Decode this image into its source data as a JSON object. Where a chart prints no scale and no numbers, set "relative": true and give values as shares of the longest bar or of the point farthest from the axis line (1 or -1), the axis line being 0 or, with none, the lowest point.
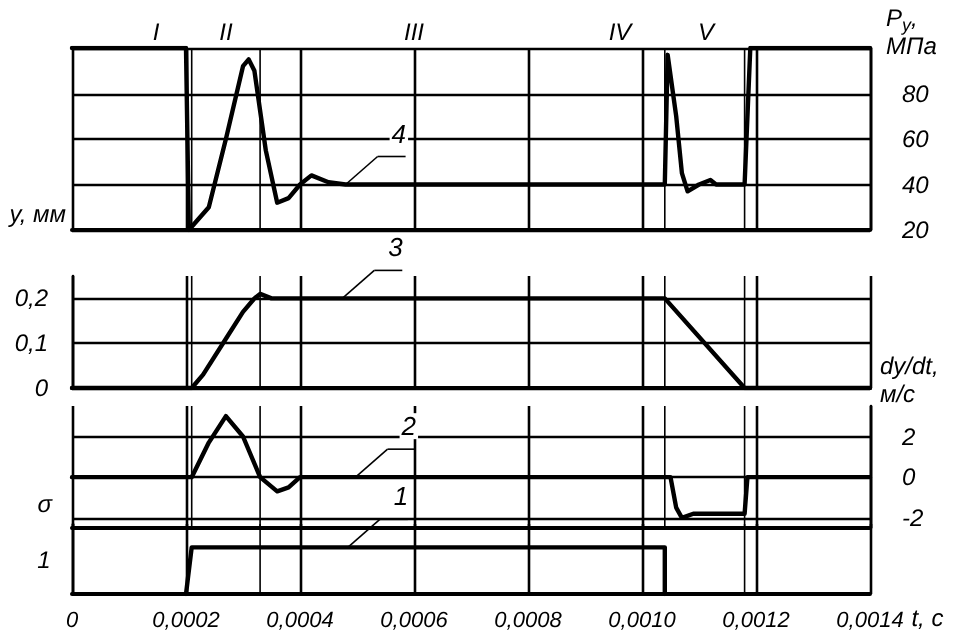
{
  "chart_data": [
    {
      "type": "line",
      "y2label": "P$_{у}$, МПа",
      "xlim": [
        0,
        0.0014
      ],
      "xticks": [
        0,
        0.0002,
        0.0004,
        0.0006,
        0.0008,
        0.001,
        0.0012,
        0.0014
      ],
      "y2lim": [
        20,
        100
      ],
      "y2ticks": [
        20,
        40,
        60,
        80,
        {
          "value": 100,
          "label": null
        }
      ],
      "tick_labels": "y",
      "grid": true,
      "marker": "none",
      "line_style": "solid",
      "series": [
        {
          "name": "4",
          "color": "#000000",
          "axis": "y2",
          "x": [
            0,
            0.0002,
            0.000205,
            0.00024,
            0.00027,
            0.0003,
            0.00031,
            0.00032,
            0.00034,
            0.00036,
            0.00038,
            0.0004,
            0.00042,
            0.00045,
            0.00048,
            0.00104,
            0.001045,
            0.00106,
            0.00107,
            0.00108,
            0.0011,
            0.00112,
            0.00113,
            0.00118,
            0.00119,
            0.0014
          ],
          "values": [
            100,
            100,
            20,
            30,
            60,
            92,
            95,
            90,
            55,
            32,
            34,
            40,
            44,
            41,
            40,
            40,
            97,
            70,
            45,
            37,
            40,
            42,
            40,
            40,
            100,
            100
          ]
        }
      ],
      "ref_lines": [
        {
          "axis": "x",
          "value": 0.00021
        },
        {
          "axis": "x",
          "value": 0.00033
        },
        {
          "axis": "x",
          "value": 0.00104
        },
        {
          "axis": "x",
          "value": 0.00118
        }
      ],
      "annotations": [
        "I",
        "II",
        "III",
        "IV",
        "V"
      ]
    },
    {
      "type": "line",
      "ylabel": "y, мм",
      "xlim": [
        0,
        0.0014
      ],
      "xticks": [
        0,
        0.0002,
        0.0004,
        0.0006,
        0.0008,
        0.001,
        0.0012,
        0.0014
      ],
      "ylim": [
        0,
        0.25
      ],
      "yticks": [
        {
          "value": 0,
          "label": "0"
        },
        {
          "value": 0.1,
          "label": "0,1"
        },
        {
          "value": 0.2,
          "label": "0,2"
        }
      ],
      "tick_labels": "y",
      "grid": true,
      "marker": "none",
      "line_style": "solid",
      "series": [
        {
          "name": "3",
          "color": "#000000",
          "x": [
            0,
            0.00021,
            0.00023,
            0.00027,
            0.0003,
            0.00032,
            0.00033,
            0.00035,
            0.00104,
            0.00118,
            0.0014
          ],
          "values": [
            0,
            0,
            0.03,
            0.11,
            0.17,
            0.2,
            0.21,
            0.2,
            0.2,
            0,
            0
          ]
        }
      ],
      "ref_lines": [
        {
          "axis": "x",
          "value": 0.00021
        },
        {
          "axis": "x",
          "value": 0.00033
        },
        {
          "axis": "x",
          "value": 0.00104
        },
        {
          "axis": "x",
          "value": 0.00118
        }
      ]
    },
    {
      "type": "line",
      "y2label": "dy/dt, м/с",
      "xlim": [
        0,
        0.0014
      ],
      "xticks": [
        0,
        0.0002,
        0.0004,
        0.0006,
        0.0008,
        0.001,
        0.0012,
        0.0014
      ],
      "y2lim": [
        -2.5,
        3.5
      ],
      "y2ticks": [
        -2,
        0,
        2
      ],
      "tick_labels": "y",
      "grid": true,
      "marker": "none",
      "line_style": "solid",
      "series": [
        {
          "name": "2",
          "color": "#000000",
          "axis": "y2",
          "x": [
            0,
            0.00021,
            0.00024,
            0.00027,
            0.0003,
            0.00033,
            0.00036,
            0.00038,
            0.0004,
            0.00105,
            0.00106,
            0.00107,
            0.00109,
            0.00118,
            0.001185,
            0.0014
          ],
          "values": [
            0,
            0,
            1.7,
            3,
            2,
            0,
            -0.7,
            -0.5,
            0,
            0,
            -1.5,
            -2,
            -1.8,
            -1.8,
            0,
            0
          ]
        }
      ],
      "ref_lines": [
        {
          "axis": "x",
          "value": 0.00021
        },
        {
          "axis": "x",
          "value": 0.00033
        },
        {
          "axis": "x",
          "value": 0.00104
        },
        {
          "axis": "x",
          "value": 0.00118
        }
      ]
    },
    {
      "type": "line",
      "ylabel": "σ",
      "xlabel": "t, c",
      "relative": true,
      "xlim": [
        0,
        0.0014
      ],
      "xticks": [
        0,
        {
          "value": 0.0002,
          "label": "0,0002"
        },
        {
          "value": 0.0004,
          "label": "0,0004"
        },
        {
          "value": 0.0006,
          "label": "0,0006"
        },
        {
          "value": 0.0008,
          "label": "0,0008"
        },
        {
          "value": 0.001,
          "label": "0,0010"
        },
        {
          "value": 0.0012,
          "label": "0,0012"
        },
        {
          "value": 0.0014,
          "label": "0,0014"
        }
      ],
      "grid": "x",
      "marker": "none",
      "line_style": "solid",
      "series": [
        {
          "name": "1",
          "color": "#000000",
          "x": [
            0.0002,
            0.00021,
            0.00104,
            0.00104
          ],
          "values": [
            0,
            1,
            1,
            0
          ]
        }
      ],
      "ref_lines": [
        {
          "axis": "x",
          "value": 0.00033
        },
        {
          "axis": "x",
          "value": 0.00118
        }
      ],
      "annotations": [
        "1"
      ]
    }
  ]
}
